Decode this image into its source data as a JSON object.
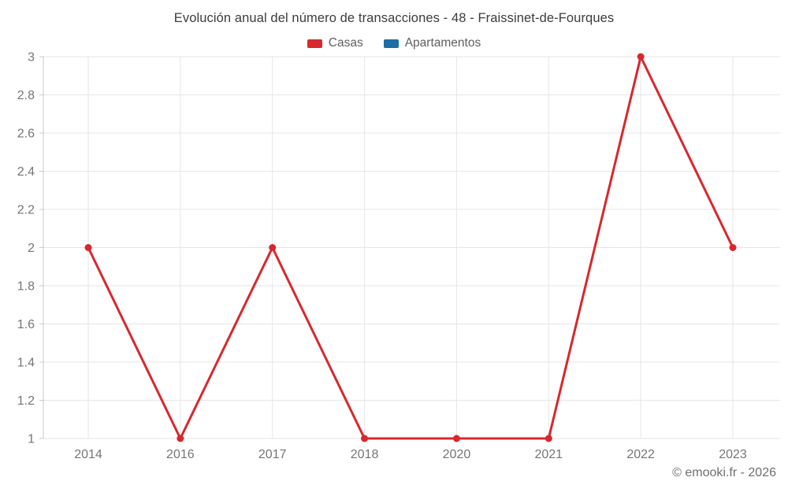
{
  "title": "Evolución anual del número de transacciones - 48 - Fraissinet-de-Fourques",
  "legend": [
    {
      "label": "Casas",
      "color": "#d7282e"
    },
    {
      "label": "Apartamentos",
      "color": "#1c6ea4"
    }
  ],
  "footer": "© emooki.fr - 2026",
  "chart_data": {
    "type": "line",
    "title": "Evolución anual del número de transacciones - 48 - Fraissinet-de-Fourques",
    "categories": [
      "2014",
      "2016",
      "2017",
      "2018",
      "2020",
      "2021",
      "2022",
      "2023"
    ],
    "series": [
      {
        "name": "Casas",
        "color": "#d7282e",
        "values": [
          2,
          1,
          2,
          1,
          1,
          1,
          3,
          2
        ]
      },
      {
        "name": "Apartamentos",
        "color": "#1c6ea4",
        "values": []
      }
    ],
    "xlabel": "",
    "ylabel": "",
    "ylim": [
      1,
      3
    ],
    "ytick_step": 0.2,
    "ytick_labels": [
      "1",
      "1.2",
      "1.4",
      "1.6",
      "1.8",
      "2",
      "2.2",
      "2.4",
      "2.6",
      "2.8",
      "3"
    ],
    "grid": true,
    "legend_position": "top",
    "colors": {
      "grid": "#e6e6e6",
      "axis": "#c9c9c9",
      "tick_label": "#757575"
    }
  }
}
